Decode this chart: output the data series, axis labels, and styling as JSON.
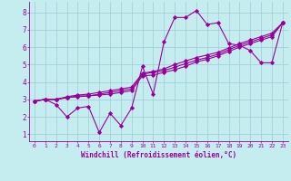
{
  "xlabel": "Windchill (Refroidissement éolien,°C)",
  "xlim": [
    -0.5,
    23.5
  ],
  "ylim": [
    0.6,
    8.6
  ],
  "xticks": [
    0,
    1,
    2,
    3,
    4,
    5,
    6,
    7,
    8,
    9,
    10,
    11,
    12,
    13,
    14,
    15,
    16,
    17,
    18,
    19,
    20,
    21,
    22,
    23
  ],
  "yticks": [
    1,
    2,
    3,
    4,
    5,
    6,
    7,
    8
  ],
  "bg_color": "#c5edf0",
  "grid_color": "#9dcdd4",
  "line_color": "#990099",
  "series": [
    [
      2.9,
      3.0,
      2.7,
      2.0,
      2.5,
      2.6,
      1.1,
      2.2,
      1.5,
      2.5,
      4.9,
      3.3,
      6.3,
      7.7,
      7.7,
      8.1,
      7.3,
      7.4,
      6.2,
      6.1,
      5.8,
      5.1,
      5.1,
      7.4
    ],
    [
      2.9,
      3.0,
      3.0,
      3.1,
      3.15,
      3.2,
      3.25,
      3.3,
      3.4,
      3.5,
      4.35,
      4.4,
      4.55,
      4.7,
      4.9,
      5.15,
      5.3,
      5.5,
      5.75,
      6.0,
      6.2,
      6.4,
      6.6,
      7.4
    ],
    [
      2.9,
      3.0,
      3.0,
      3.1,
      3.2,
      3.2,
      3.3,
      3.4,
      3.5,
      3.6,
      4.45,
      4.55,
      4.65,
      4.85,
      5.05,
      5.25,
      5.4,
      5.6,
      5.85,
      6.1,
      6.3,
      6.5,
      6.7,
      7.4
    ],
    [
      2.9,
      3.0,
      3.0,
      3.15,
      3.25,
      3.3,
      3.4,
      3.5,
      3.6,
      3.7,
      4.5,
      4.6,
      4.75,
      5.0,
      5.2,
      5.4,
      5.55,
      5.7,
      5.95,
      6.2,
      6.4,
      6.6,
      6.8,
      7.4
    ]
  ],
  "marker": "D",
  "markersize": 2.0,
  "linewidth": 0.8
}
